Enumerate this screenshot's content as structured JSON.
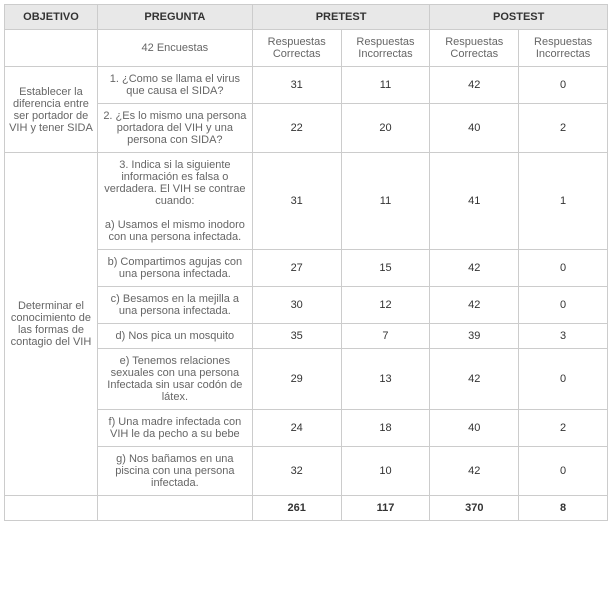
{
  "headers": {
    "objetivo": "OBJETIVO",
    "pregunta": "PREGUNTA",
    "pretest": "PRETEST",
    "postest": "POSTEST",
    "encuestas": "42 Encuestas",
    "resp_correctas": "Respuestas Correctas",
    "resp_incorrectas": "Respuestas Incorrectas"
  },
  "obj1": {
    "text": "Establecer la diferencia entre ser portador de VIH y tener SIDA",
    "q1": {
      "text": "1. ¿Como se llama el virus que causa el SIDA?",
      "pre_c": "31",
      "pre_i": "11",
      "post_c": "42",
      "post_i": "0"
    },
    "q2": {
      "text": "2. ¿Es lo mismo una persona portadora del VIH y una persona con SIDA?",
      "pre_c": "22",
      "pre_i": "20",
      "post_c": "40",
      "post_i": "2"
    }
  },
  "obj2": {
    "text": "Determinar el conocimiento de las formas de contagio del VIH",
    "q3": {
      "text": "3. Indica si la siguiente información es falsa o verdadera. El VIH se contrae cuando:\n\na) Usamos el mismo inodoro con una persona infectada.",
      "pre_c": "31",
      "pre_i": "11",
      "post_c": "41",
      "post_i": "1"
    },
    "qb": {
      "text": "b) Compartimos agujas con una persona infectada.",
      "pre_c": "27",
      "pre_i": "15",
      "post_c": "42",
      "post_i": "0"
    },
    "qc": {
      "text": "c) Besamos en la mejilla a una persona infectada.",
      "pre_c": "30",
      "pre_i": "12",
      "post_c": "42",
      "post_i": "0"
    },
    "qd": {
      "text": "d) Nos pica un mosquito",
      "pre_c": "35",
      "pre_i": "7",
      "post_c": "39",
      "post_i": "3"
    },
    "qe": {
      "text": "e) Tenemos relaciones sexuales con una persona Infectada sin usar codón de látex.",
      "pre_c": "29",
      "pre_i": "13",
      "post_c": "42",
      "post_i": "0"
    },
    "qf": {
      "text": "f) Una madre infectada con VIH le da pecho a su bebe",
      "pre_c": "24",
      "pre_i": "18",
      "post_c": "40",
      "post_i": "2"
    },
    "qg": {
      "text": "g) Nos bañamos en una piscina con una persona infectada.",
      "pre_c": "32",
      "pre_i": "10",
      "post_c": "42",
      "post_i": "0"
    }
  },
  "totals": {
    "pre_c": "261",
    "pre_i": "117",
    "post_c": "370",
    "post_i": "8"
  }
}
